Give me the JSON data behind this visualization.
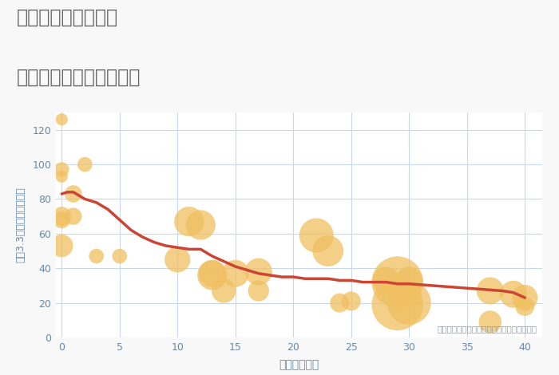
{
  "title_line1": "兵庫県姫路市南町の",
  "title_line2": "築年数別中古戸建て価格",
  "xlabel": "築年数（年）",
  "ylabel": "坪（3.3㎡）単価（万円）",
  "annotation": "円の大きさは、取引のあった物件面積を示す",
  "background_color": "#f8f8f8",
  "plot_bg_color": "#ffffff",
  "grid_color": "#c8d8ea",
  "title_color": "#666666",
  "tick_color": "#6688aa",
  "axis_label_color": "#6688aa",
  "annotation_color": "#8899aa",
  "bubble_color": "#f0c060",
  "bubble_alpha": 0.75,
  "line_color": "#cc4433",
  "line_width": 2.5,
  "xlim": [
    -0.5,
    41.5
  ],
  "ylim": [
    0,
    130
  ],
  "xticks": [
    0,
    5,
    10,
    15,
    20,
    25,
    30,
    35,
    40
  ],
  "yticks": [
    0,
    20,
    40,
    60,
    80,
    100,
    120
  ],
  "scatter_x": [
    0,
    0,
    0,
    0,
    0,
    0,
    1,
    1,
    2,
    3,
    5,
    10,
    11,
    12,
    13,
    13,
    14,
    15,
    17,
    17,
    22,
    23,
    24,
    25,
    28,
    29,
    29,
    30,
    30,
    37,
    37,
    39,
    40,
    40
  ],
  "scatter_y": [
    126,
    97,
    93,
    70,
    68,
    53,
    83,
    70,
    100,
    47,
    47,
    45,
    67,
    65,
    36,
    37,
    27,
    37,
    38,
    27,
    59,
    50,
    20,
    21,
    33,
    32,
    19,
    33,
    20,
    9,
    27,
    25,
    23,
    18
  ],
  "scatter_size": [
    10,
    15,
    10,
    25,
    20,
    35,
    20,
    20,
    15,
    15,
    15,
    45,
    60,
    60,
    60,
    50,
    40,
    50,
    50,
    30,
    80,
    65,
    25,
    25,
    50,
    180,
    180,
    50,
    130,
    35,
    50,
    50,
    45,
    25
  ],
  "line_x": [
    0,
    0.5,
    1,
    1.5,
    2,
    3,
    4,
    5,
    6,
    7,
    8,
    9,
    10,
    11,
    12,
    13,
    14,
    15,
    16,
    17,
    18,
    19,
    20,
    21,
    22,
    23,
    24,
    25,
    26,
    27,
    28,
    29,
    30,
    32,
    34,
    36,
    38,
    39,
    40
  ],
  "line_y": [
    83,
    84,
    84,
    82,
    80,
    78,
    74,
    68,
    62,
    58,
    55,
    53,
    52,
    51,
    51,
    47,
    44,
    41,
    39,
    37,
    36,
    35,
    35,
    34,
    34,
    34,
    33,
    33,
    32,
    32,
    32,
    31,
    31,
    30,
    29,
    28,
    27,
    26,
    23
  ]
}
